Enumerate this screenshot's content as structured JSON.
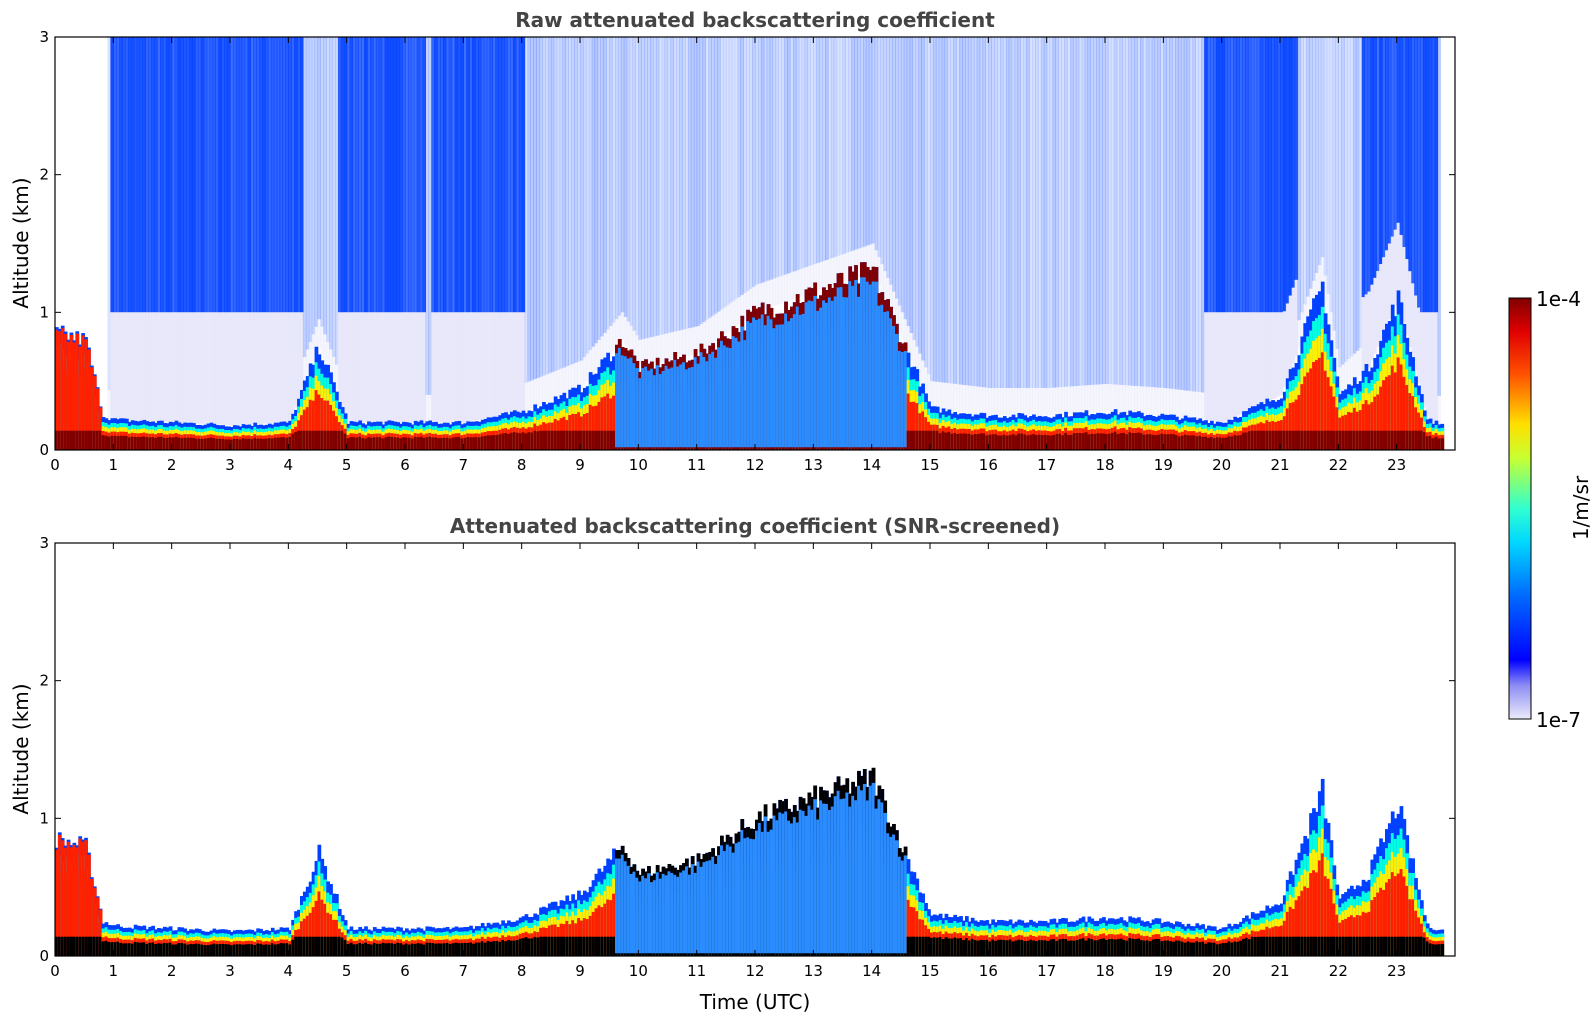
{
  "chart_data": [
    {
      "type": "heatmap",
      "title": "Raw attenuated backscattering coefficient",
      "xlabel": "",
      "ylabel": "Altitude (km)",
      "xlim": [
        0,
        24
      ],
      "ylim": [
        0,
        3
      ],
      "x_ticks": [
        0,
        1,
        2,
        3,
        4,
        5,
        6,
        7,
        8,
        9,
        10,
        11,
        12,
        13,
        14,
        15,
        16,
        17,
        18,
        19,
        20,
        21,
        22,
        23
      ],
      "x_tick_labels": [
        "0",
        "1",
        "2",
        "3",
        "4",
        "5",
        "6",
        "7",
        "8",
        "9",
        "10",
        "11",
        "12",
        "13",
        "14",
        "15",
        "16",
        "17",
        "18",
        "19",
        "20",
        "21",
        "22",
        "23"
      ],
      "y_ticks": [
        0,
        1,
        2,
        3
      ],
      "y_tick_labels": [
        "0",
        "1",
        "2",
        "3"
      ],
      "boundary_layer_top_km": [
        [
          0,
          0.85
        ],
        [
          0.5,
          0.8
        ],
        [
          0.8,
          0.25
        ],
        [
          1,
          0.22
        ],
        [
          2,
          0.2
        ],
        [
          3,
          0.18
        ],
        [
          4,
          0.2
        ],
        [
          4.5,
          0.75
        ],
        [
          5,
          0.2
        ],
        [
          6,
          0.2
        ],
        [
          7,
          0.2
        ],
        [
          8,
          0.28
        ],
        [
          9,
          0.45
        ],
        [
          9.7,
          0.8
        ],
        [
          10,
          0.6
        ],
        [
          11,
          0.7
        ],
        [
          12,
          1.0
        ],
        [
          13,
          1.15
        ],
        [
          14,
          1.3
        ],
        [
          14.5,
          0.8
        ],
        [
          15,
          0.3
        ],
        [
          16,
          0.25
        ],
        [
          17,
          0.25
        ],
        [
          18,
          0.28
        ],
        [
          19,
          0.25
        ],
        [
          20,
          0.2
        ],
        [
          21,
          0.4
        ],
        [
          21.7,
          1.2
        ],
        [
          22,
          0.4
        ],
        [
          22.5,
          0.6
        ],
        [
          23,
          1.1
        ],
        [
          23.5,
          0.22
        ],
        [
          23.8,
          0.18
        ]
      ]
    },
    {
      "type": "heatmap",
      "title": "Attenuated backscattering coefficient (SNR-screened)",
      "xlabel": "Time (UTC)",
      "ylabel": "Altitude (km)",
      "xlim": [
        0,
        24
      ],
      "ylim": [
        0,
        3
      ],
      "x_ticks": [
        0,
        1,
        2,
        3,
        4,
        5,
        6,
        7,
        8,
        9,
        10,
        11,
        12,
        13,
        14,
        15,
        16,
        17,
        18,
        19,
        20,
        21,
        22,
        23
      ],
      "x_tick_labels": [
        "0",
        "1",
        "2",
        "3",
        "4",
        "5",
        "6",
        "7",
        "8",
        "9",
        "10",
        "11",
        "12",
        "13",
        "14",
        "15",
        "16",
        "17",
        "18",
        "19",
        "20",
        "21",
        "22",
        "23"
      ],
      "y_ticks": [
        0,
        1,
        2,
        3
      ],
      "y_tick_labels": [
        "0",
        "1",
        "2",
        "3"
      ],
      "boundary_layer_top_km": [
        [
          0,
          0.85
        ],
        [
          0.5,
          0.8
        ],
        [
          0.8,
          0.25
        ],
        [
          1,
          0.22
        ],
        [
          2,
          0.2
        ],
        [
          3,
          0.18
        ],
        [
          4,
          0.2
        ],
        [
          4.5,
          0.75
        ],
        [
          5,
          0.2
        ],
        [
          6,
          0.2
        ],
        [
          7,
          0.2
        ],
        [
          8,
          0.28
        ],
        [
          9,
          0.45
        ],
        [
          9.7,
          0.8
        ],
        [
          10,
          0.6
        ],
        [
          11,
          0.7
        ],
        [
          12,
          1.0
        ],
        [
          13,
          1.15
        ],
        [
          14,
          1.3
        ],
        [
          14.5,
          0.8
        ],
        [
          15,
          0.3
        ],
        [
          16,
          0.25
        ],
        [
          17,
          0.25
        ],
        [
          18,
          0.28
        ],
        [
          19,
          0.25
        ],
        [
          20,
          0.2
        ],
        [
          21,
          0.4
        ],
        [
          21.7,
          1.2
        ],
        [
          22,
          0.4
        ],
        [
          22.5,
          0.6
        ],
        [
          23,
          1.1
        ],
        [
          23.5,
          0.22
        ],
        [
          23.8,
          0.18
        ]
      ]
    }
  ],
  "colorbar": {
    "label": "1/m/sr",
    "max_label": "1e-4",
    "min_label": "1e-7",
    "scale": "log",
    "range": [
      1e-07,
      0.0001
    ]
  },
  "colors": {
    "title": "#444444",
    "dark_red": "#800000",
    "red": "#ff2000",
    "yellow": "#ffee00",
    "cyan": "#00ffe0",
    "blue": "#0040ff",
    "faint": "#e6e6fa",
    "black": "#000000"
  }
}
